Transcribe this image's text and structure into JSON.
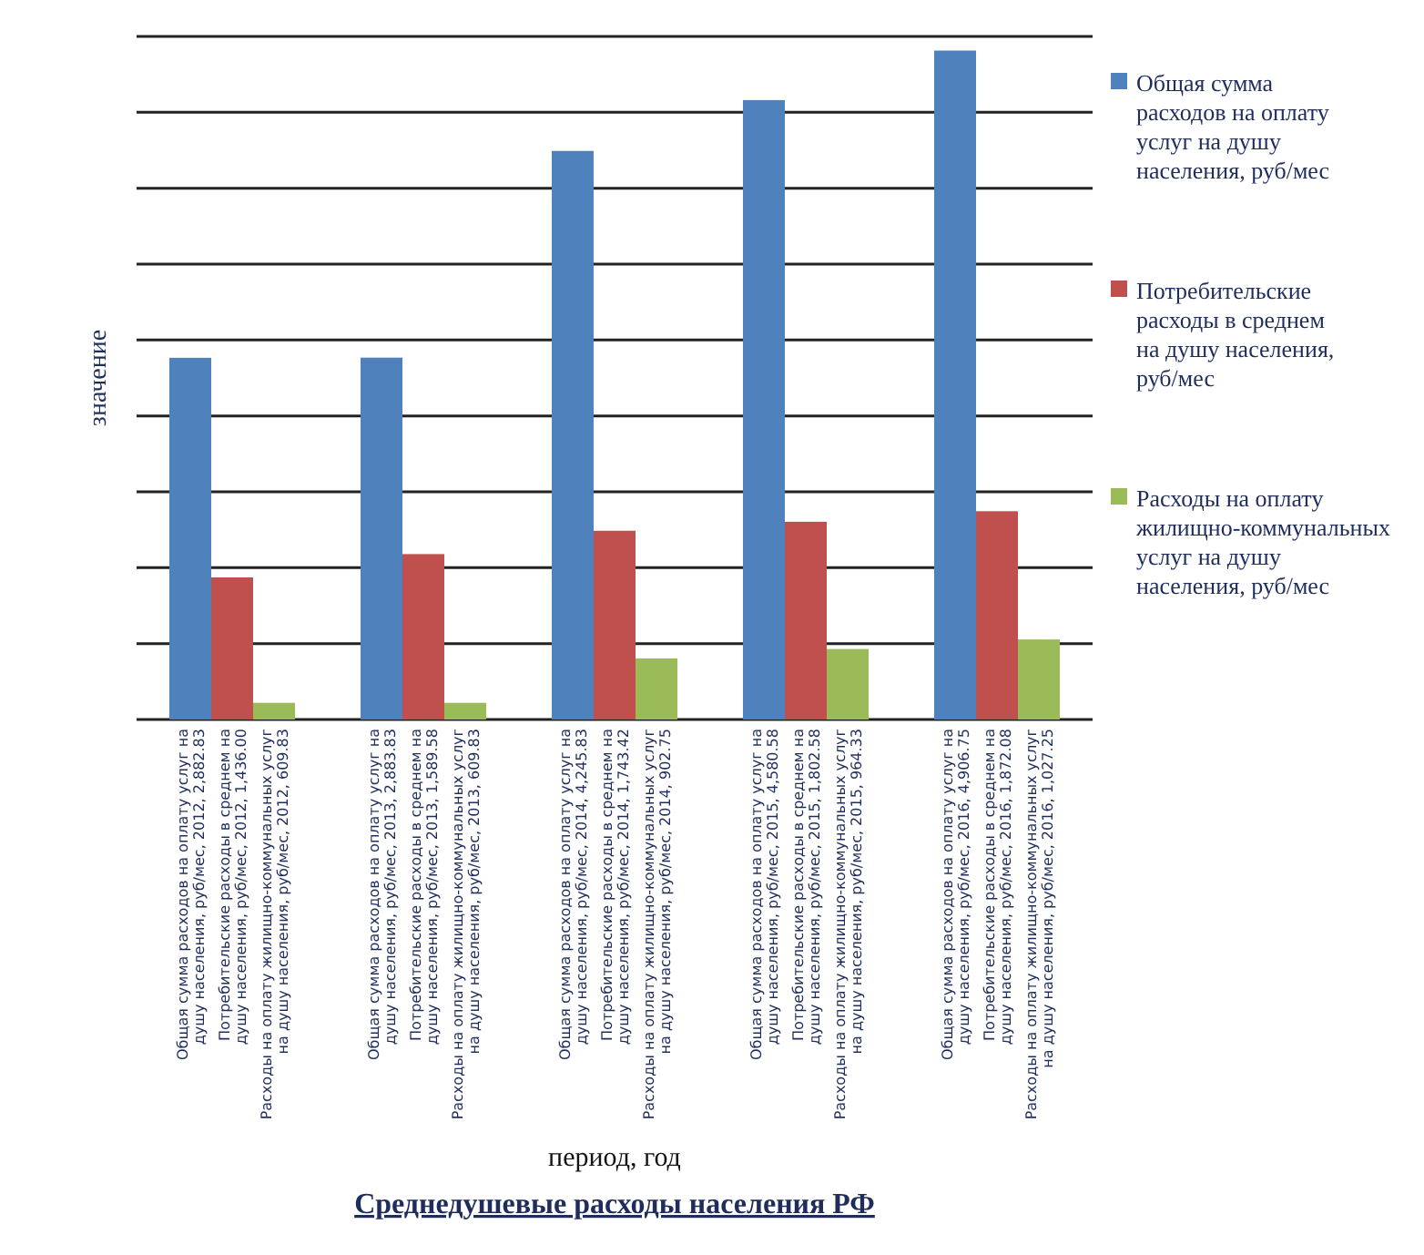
{
  "chart_data": {
    "type": "bar",
    "title": "Среднедушевые расходы населения РФ",
    "annotations": [
      "период, год"
    ],
    "ylabel": "значение",
    "categories": [
      null,
      null,
      null,
      null,
      null
    ],
    "series": [
      {
        "name": "Общая сумма расходов на оплату услуг на душу населения, руб/мес",
        "color": "#4f81bd",
        "values": [
          2882.83,
          2883.83,
          4245.83,
          4580.58,
          4906.75
        ],
        "value_labels": [
          "Общая сумма расходов на оплату услуг на душу населения, руб/мес, 2012, 2,882.83",
          "Общая сумма расходов на оплату услуг на душу населения, руб/мес, 2013, 2,883.83",
          "Общая сумма расходов на оплату услуг на душу населения, руб/мес, 2014, 4,245.83",
          "Общая сумма расходов на оплату услуг на душу населения, руб/мес, 2015, 4,580.58",
          "Общая сумма расходов на оплату услуг на душу населения, руб/мес, 2016, 4,906.75"
        ]
      },
      {
        "name": "Потребительские расходы в среднем на душу населения, руб/мес",
        "color": "#c0504d",
        "values": [
          1436.0,
          1589.58,
          1743.42,
          1802.58,
          1872.08
        ],
        "value_labels": [
          "Потребительские расходы в среднем на душу населения, руб/мес, 2012, 1,436.00",
          "Потребительские расходы в среднем на душу населения, руб/мес, 2013, 1,589.58",
          "Потребительские расходы в среднем на душу населения, руб/мес, 2014, 1,743.42",
          "Потребительские расходы в среднем на душу населения, руб/мес, 2015, 1,802.58",
          "Потребительские расходы в среднем на душу населения, руб/мес, 2016, 1,872.08"
        ]
      },
      {
        "name": "Расходы на оплату жилищно-коммунальных услуг на душу населения, руб/мес",
        "color": "#9bbb59",
        "values": [
          609.83,
          609.83,
          902.75,
          964.33,
          1027.25
        ],
        "value_labels": [
          "Расходы на оплату жилищно-коммунальных услуг на душу населения, руб/мес, 2012, 609.83",
          "Расходы на оплату жилищно-коммунальных услуг на душу населения, руб/мес, 2013, 609.83",
          "Расходы на оплату жилищно-коммунальных услуг на душу населения, руб/мес, 2014, 902.75",
          "Расходы на оплату жилищно-коммунальных услуг на душу населения, руб/мес, 2015, 964.33",
          "Расходы на оплату жилищно-коммунальных услуг на душу населения, руб/мес, 2016, 1,027.25"
        ]
      }
    ],
    "ylim": [
      500,
      5000
    ],
    "yticks": [
      {
        "value": 500,
        "label": null
      },
      {
        "value": 1000,
        "label": null
      },
      {
        "value": 1500,
        "label": null
      },
      {
        "value": 2000,
        "label": null
      },
      {
        "value": 2500,
        "label": null
      },
      {
        "value": 3000,
        "label": null
      },
      {
        "value": 3500,
        "label": null
      },
      {
        "value": 4000,
        "label": null
      },
      {
        "value": 4500,
        "label": null
      },
      {
        "value": 5000,
        "label": null
      }
    ],
    "grid": "y",
    "legend": "right"
  }
}
